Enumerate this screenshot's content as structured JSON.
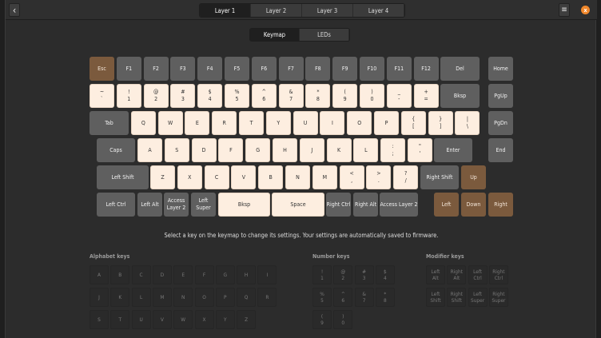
{
  "header": {
    "back_icon": "chevron-left-icon",
    "layers": [
      "Layer 1",
      "Layer 2",
      "Layer 3",
      "Layer 4"
    ],
    "active_layer": 0,
    "menu_icon": "hamburger-menu-icon",
    "close_icon": "close-icon",
    "close_glyph": "x",
    "back_glyph": "‹",
    "menu_glyph": "≡"
  },
  "view_tabs": {
    "items": [
      "Keymap",
      "LEDs"
    ],
    "active": 0
  },
  "colors": {
    "key_default": "#5f5f5f",
    "key_mapped": "#fdeee0",
    "key_highlight": "#7b5a3d",
    "accent": "#f0882c"
  },
  "keyboard": {
    "rows": [
      [
        {
          "l": "Esc",
          "s": "brown"
        },
        {
          "l": "F1"
        },
        {
          "l": "F2"
        },
        {
          "l": "F3"
        },
        {
          "l": "F4"
        },
        {
          "l": "F5"
        },
        {
          "l": "F6"
        },
        {
          "l": "F7"
        },
        {
          "l": "F8"
        },
        {
          "l": "F9"
        },
        {
          "l": "F10"
        },
        {
          "l": "F11"
        },
        {
          "l": "F12"
        },
        {
          "l": "Del"
        },
        {
          "l": "Home"
        }
      ],
      [
        {
          "t": "~",
          "b": "`",
          "s": "mapped"
        },
        {
          "t": "!",
          "b": "1",
          "s": "mapped"
        },
        {
          "t": "@",
          "b": "2",
          "s": "mapped"
        },
        {
          "t": "#",
          "b": "3",
          "s": "mapped"
        },
        {
          "t": "$",
          "b": "4",
          "s": "mapped"
        },
        {
          "t": "%",
          "b": "5",
          "s": "mapped"
        },
        {
          "t": "^",
          "b": "6",
          "s": "mapped"
        },
        {
          "t": "&",
          "b": "7",
          "s": "mapped"
        },
        {
          "t": "*",
          "b": "8",
          "s": "mapped"
        },
        {
          "t": "(",
          "b": "9",
          "s": "mapped"
        },
        {
          "t": ")",
          "b": "0",
          "s": "mapped"
        },
        {
          "t": "_",
          "b": "-",
          "s": "mapped"
        },
        {
          "t": "+",
          "b": "=",
          "s": "mapped"
        },
        {
          "l": "Bksp"
        },
        {
          "l": "PgUp"
        }
      ],
      [
        {
          "l": "Tab"
        },
        {
          "l": "Q",
          "s": "mapped"
        },
        {
          "l": "W",
          "s": "mapped"
        },
        {
          "l": "E",
          "s": "mapped"
        },
        {
          "l": "R",
          "s": "mapped"
        },
        {
          "l": "T",
          "s": "mapped"
        },
        {
          "l": "Y",
          "s": "mapped"
        },
        {
          "l": "U",
          "s": "mapped"
        },
        {
          "l": "I",
          "s": "mapped"
        },
        {
          "l": "O",
          "s": "mapped"
        },
        {
          "l": "P",
          "s": "mapped"
        },
        {
          "t": "{",
          "b": "[",
          "s": "mapped"
        },
        {
          "t": "}",
          "b": "]",
          "s": "mapped"
        },
        {
          "t": "|",
          "b": "\\",
          "s": "mapped"
        },
        {
          "l": "PgDn"
        }
      ],
      [
        {
          "l": "Caps"
        },
        {
          "l": "A",
          "s": "mapped"
        },
        {
          "l": "S",
          "s": "mapped"
        },
        {
          "l": "D",
          "s": "mapped"
        },
        {
          "l": "F",
          "s": "mapped"
        },
        {
          "l": "G",
          "s": "mapped"
        },
        {
          "l": "H",
          "s": "mapped"
        },
        {
          "l": "J",
          "s": "mapped"
        },
        {
          "l": "K",
          "s": "mapped"
        },
        {
          "l": "L",
          "s": "mapped"
        },
        {
          "t": ":",
          "b": ";",
          "s": "mapped"
        },
        {
          "t": "\"",
          "b": "'",
          "s": "mapped"
        },
        {
          "l": "Enter"
        },
        {
          "l": "End"
        }
      ],
      [
        {
          "l": "Left Shift"
        },
        {
          "l": "Z",
          "s": "mapped"
        },
        {
          "l": "X",
          "s": "mapped"
        },
        {
          "l": "C",
          "s": "mapped"
        },
        {
          "l": "V",
          "s": "mapped"
        },
        {
          "l": "B",
          "s": "mapped"
        },
        {
          "l": "N",
          "s": "mapped"
        },
        {
          "l": "M",
          "s": "mapped"
        },
        {
          "t": "<",
          "b": ",",
          "s": "mapped"
        },
        {
          "t": ">",
          "b": ".",
          "s": "mapped"
        },
        {
          "t": "?",
          "b": "/",
          "s": "mapped"
        },
        {
          "l": "Right Shift"
        },
        {
          "l": "Up",
          "s": "brown"
        }
      ],
      [
        {
          "l": "Left Ctrl"
        },
        {
          "l": "Left Alt"
        },
        {
          "t": "Access",
          "b": "Layer 2"
        },
        {
          "t": "Left",
          "b": "Super"
        },
        {
          "l": "Bksp",
          "s": "mapped"
        },
        {
          "l": "Space",
          "s": "mapped"
        },
        {
          "l": "Right Ctrl"
        },
        {
          "l": "Right Alt"
        },
        {
          "l": "Access Layer 2"
        },
        {
          "l": "Left",
          "s": "brown"
        },
        {
          "l": "Down",
          "s": "brown"
        },
        {
          "l": "Right",
          "s": "brown"
        }
      ]
    ]
  },
  "hint": "Select a key on the keymap to change its settings. Your settings are automatically saved to firmware.",
  "palette": {
    "alphabet": {
      "title": "Alphabet keys",
      "keys": [
        "A",
        "B",
        "C",
        "D",
        "E",
        "F",
        "G",
        "H",
        "I",
        "J",
        "K",
        "L",
        "M",
        "N",
        "O",
        "P",
        "Q",
        "R",
        "S",
        "T",
        "U",
        "V",
        "W",
        "X",
        "Y",
        "Z"
      ]
    },
    "number": {
      "title": "Number keys",
      "keys": [
        [
          "!",
          "1"
        ],
        [
          "@",
          "2"
        ],
        [
          "#",
          "3"
        ],
        [
          "$",
          "4"
        ],
        [
          "%",
          "5"
        ],
        [
          "^",
          "6"
        ],
        [
          "&",
          "7"
        ],
        [
          "*",
          "8"
        ],
        [
          "(",
          "9"
        ],
        [
          ")",
          "0"
        ]
      ]
    },
    "modifier": {
      "title": "Modifier keys",
      "keys": [
        [
          "Left",
          "Alt"
        ],
        [
          "Right",
          "Alt"
        ],
        [
          "Left",
          "Ctrl"
        ],
        [
          "Right",
          "Ctrl"
        ],
        [
          "Left",
          "Shift"
        ],
        [
          "Right",
          "Shift"
        ],
        [
          "Left",
          "Super"
        ],
        [
          "Right",
          "Super"
        ]
      ]
    }
  }
}
